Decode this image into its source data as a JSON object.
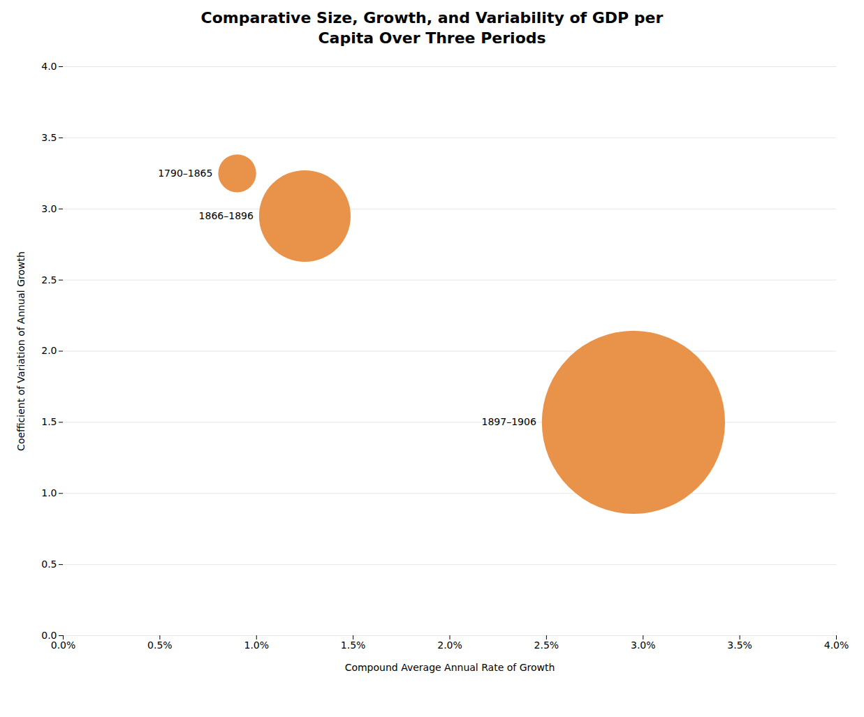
{
  "chart_data": {
    "type": "bubble",
    "title": "Comparative Size, Growth, and Variability of GDP per\nCapita Over Three Periods",
    "xlabel": "Compound Average Annual Rate of Growth",
    "ylabel": "Coefficient of Variation of Annual Growth",
    "x": [
      0.009,
      0.0125,
      0.0295
    ],
    "values": [
      3.25,
      2.95,
      1.5
    ],
    "sizes": [
      1200,
      7000,
      28000
    ],
    "labels": [
      "1790–1865",
      "1866–1896",
      "1897–1906"
    ],
    "color": "#E8924A",
    "xlim": [
      0.0,
      0.04
    ],
    "ylim": [
      0.0,
      4.0
    ],
    "xticks": [
      {
        "value": 0.0,
        "label": "0.0%"
      },
      {
        "value": 0.005,
        "label": "0.5%"
      },
      {
        "value": 0.01,
        "label": "1.0%"
      },
      {
        "value": 0.015,
        "label": "1.5%"
      },
      {
        "value": 0.02,
        "label": "2.0%"
      },
      {
        "value": 0.025,
        "label": "2.5%"
      },
      {
        "value": 0.03,
        "label": "3.0%"
      },
      {
        "value": 0.035,
        "label": "3.5%"
      },
      {
        "value": 0.04,
        "label": "4.0%"
      }
    ],
    "yticks": [
      {
        "value": 0.0,
        "label": "0.0"
      },
      0.5,
      {
        "value": 1.0,
        "label": "1.0"
      },
      1.5,
      {
        "value": 2.0,
        "label": "2.0"
      },
      2.5,
      {
        "value": 3.0,
        "label": "3.0"
      },
      3.5,
      {
        "value": 4.0,
        "label": "4.0"
      }
    ],
    "grid": "y"
  }
}
